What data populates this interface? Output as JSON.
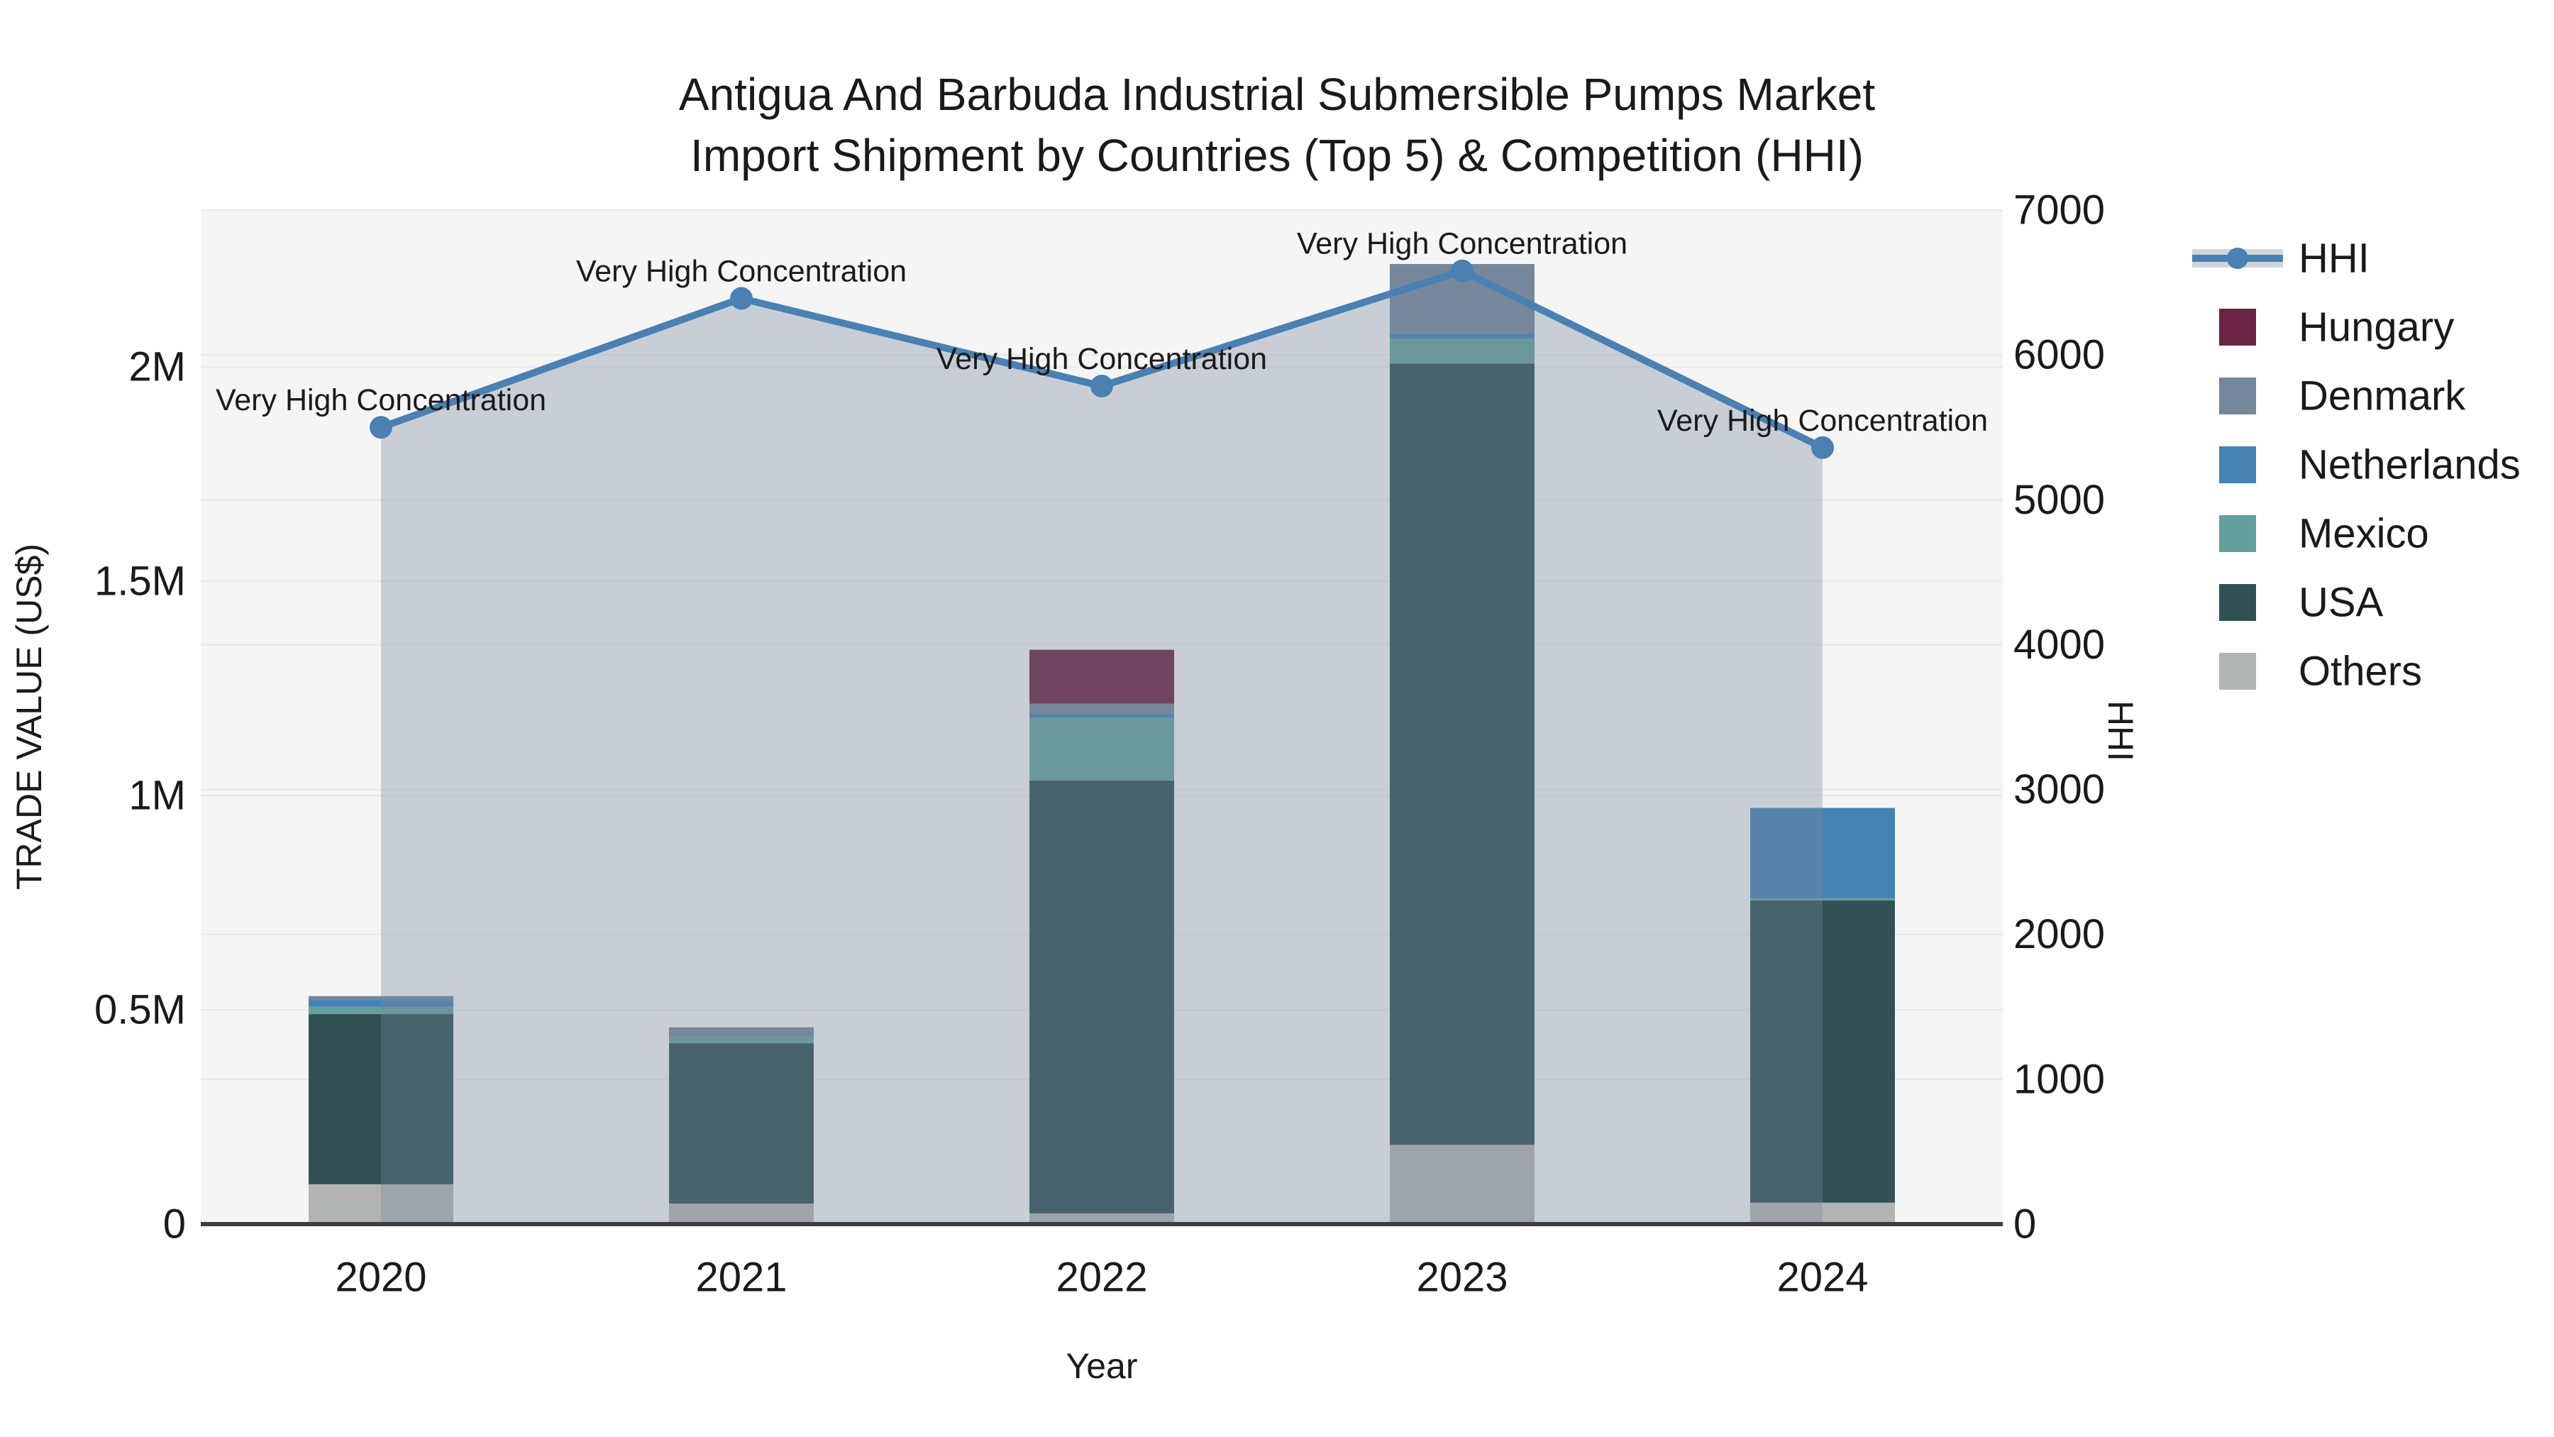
{
  "title": {
    "line1": "Antigua And Barbuda Industrial Submersible Pumps Market",
    "line2": "Import Shipment by Countries (Top 5) & Competition (HHI)"
  },
  "axes": {
    "x_label": "Year",
    "y_left_label": "TRADE VALUE (US$)",
    "y_right_label": "HHI",
    "y_left_ticks": [
      {
        "label": "0",
        "value": 0
      },
      {
        "label": "0.5M",
        "value": 500000
      },
      {
        "label": "1M",
        "value": 1000000
      },
      {
        "label": "1.5M",
        "value": 1500000
      },
      {
        "label": "2M",
        "value": 2000000
      }
    ],
    "y_right_ticks": [
      0,
      1000,
      2000,
      3000,
      4000,
      5000,
      6000,
      7000
    ],
    "y_right_max": 7000
  },
  "colors": {
    "plot_bg": "#f5f5f6",
    "grid": "#e9e9eb",
    "axis_line": "#3d3d3d",
    "text": "#1a1a1a"
  },
  "chart_data": {
    "type": [
      "bar",
      "line"
    ],
    "categories": [
      "2020",
      "2021",
      "2022",
      "2023",
      "2024"
    ],
    "series": [
      {
        "name": "Others",
        "color": "#b2b4b3",
        "values": [
          93000,
          48000,
          25000,
          185000,
          50000
        ]
      },
      {
        "name": "USA",
        "color": "#315154",
        "values": [
          397000,
          374000,
          1010000,
          1823000,
          705000
        ]
      },
      {
        "name": "Mexico",
        "color": "#64a19e",
        "values": [
          17000,
          15000,
          146000,
          58000,
          5000
        ]
      },
      {
        "name": "Netherlands",
        "color": "#4583b5",
        "values": [
          16000,
          0,
          10000,
          12000,
          211000
        ]
      },
      {
        "name": "Denmark",
        "color": "#76879b",
        "values": [
          9000,
          22000,
          23000,
          162000,
          0
        ]
      },
      {
        "name": "Hungary",
        "color": "#6b2344",
        "values": [
          0,
          0,
          126000,
          0,
          0
        ]
      }
    ],
    "hhi": {
      "name": "HHI",
      "color": "#4a80b2",
      "band_color": "rgba(120,135,155,0.35)",
      "values": [
        5500,
        6390,
        5785,
        6580,
        5360
      ],
      "annotation": "Very High Concentration"
    },
    "legend": [
      "HHI",
      "Hungary",
      "Denmark",
      "Netherlands",
      "Mexico",
      "USA",
      "Others"
    ],
    "ylabel": "TRADE VALUE (US$)",
    "y2label": "HHI",
    "xlabel": "Year",
    "ylim": [
      0,
      2366000
    ],
    "y2lim": [
      0,
      7000
    ],
    "grid": true,
    "legend_position": "right"
  }
}
